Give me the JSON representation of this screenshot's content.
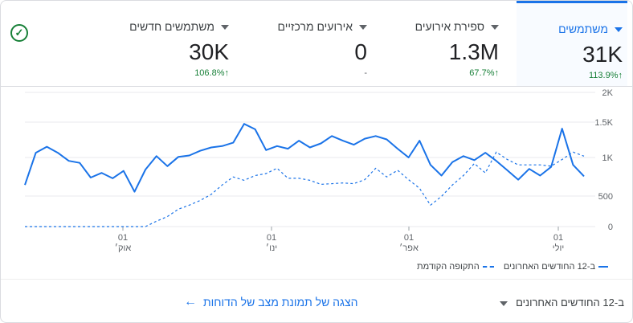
{
  "metrics": [
    {
      "label": "משתמשים",
      "value": "31K",
      "change": "113.9%",
      "arrow": "↑",
      "active": true
    },
    {
      "label": "ספירת אירועים",
      "value": "1.3M",
      "change": "67.7%",
      "arrow": "↑",
      "active": false
    },
    {
      "label": "אירועים מרכזיים",
      "value": "0",
      "change": "-",
      "arrow": "",
      "active": false
    },
    {
      "label": "משתמשים חדשים",
      "value": "30K",
      "change": "106.8%",
      "arrow": "↑",
      "active": false
    }
  ],
  "status_icon": "check-circle-icon",
  "legend": {
    "current": "ב-12 החודשים האחרונים",
    "previous": "התקופה הקודמת"
  },
  "footer": {
    "link": "הצגה של תמונת מצב של הדוחות",
    "range": "ב-12 החודשים האחרונים"
  },
  "colors": {
    "accent": "#1a73e8",
    "positive": "#188038"
  },
  "chart_data": {
    "type": "line",
    "y_ticks": [
      "2K",
      "1.5K",
      "1K",
      "500",
      "0"
    ],
    "ylim": [
      0,
      2000
    ],
    "x_labels": [
      {
        "day": "01",
        "month": "אוק׳"
      },
      {
        "day": "01",
        "month": "ינו׳"
      },
      {
        "day": "01",
        "month": "אפר׳"
      },
      {
        "day": "01",
        "month": "יולי"
      }
    ],
    "series": [
      {
        "name": "ב-12 החודשים האחרונים",
        "style": "solid",
        "values": [
          620,
          1100,
          1190,
          1100,
          980,
          950,
          730,
          800,
          720,
          830,
          520,
          850,
          1050,
          900,
          1040,
          1060,
          1130,
          1180,
          1200,
          1250,
          1530,
          1450,
          1140,
          1200,
          1160,
          1280,
          1180,
          1240,
          1350,
          1280,
          1220,
          1310,
          1350,
          1300,
          1160,
          1030,
          1280,
          920,
          760,
          960,
          1050,
          990,
          1100,
          980,
          840,
          700,
          860,
          760,
          890,
          1460,
          920,
          750
        ],
        "mark": [
          0,
          1,
          2,
          3,
          5,
          6,
          7,
          8,
          9,
          10,
          11,
          12,
          13,
          14,
          15,
          16,
          17,
          18,
          19,
          20,
          21,
          22,
          23,
          24,
          25,
          26,
          27,
          28,
          29,
          30,
          31,
          32,
          33,
          34,
          35,
          36,
          37,
          38,
          39,
          40,
          41,
          42,
          43,
          44,
          45,
          46,
          47,
          48,
          49,
          50,
          51
        ]
      },
      {
        "name": "התקופה הקודמת",
        "style": "dashed",
        "values": [
          0,
          0,
          0,
          0,
          0,
          0,
          0,
          0,
          0,
          0,
          0,
          0,
          80,
          150,
          260,
          320,
          390,
          480,
          620,
          740,
          690,
          760,
          790,
          870,
          720,
          720,
          690,
          630,
          640,
          650,
          640,
          700,
          870,
          740,
          840,
          700,
          570,
          320,
          450,
          620,
          760,
          940,
          800,
          1110,
          1000,
          920,
          920,
          920,
          900,
          1000,
          1110,
          1050
        ]
      }
    ]
  }
}
